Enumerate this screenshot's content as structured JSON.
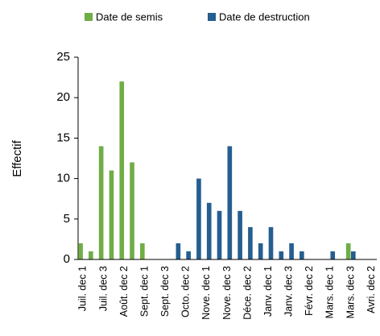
{
  "chart_data": {
    "type": "bar",
    "y_label": "Effectif",
    "categories": [
      "Juil. dec 1",
      null,
      "Juil. dec 3",
      null,
      "Août. dec 2",
      null,
      "Sept. dec 1",
      null,
      "Sept. dec 3",
      null,
      "Octo. dec 2",
      null,
      "Nove. dec 1",
      null,
      "Nove. dec 3",
      null,
      "Déce. dec 2",
      null,
      "Janv. dec 1",
      null,
      "Janv. dec 3",
      null,
      "Févr. dec 2",
      null,
      "Mars. dec 1",
      null,
      "Mars. dec 3",
      null,
      "Avri. dec 2"
    ],
    "series": [
      {
        "name": "Date de semis",
        "color": "#70ad47",
        "values": [
          2,
          1,
          14,
          11,
          22,
          12,
          2,
          null,
          null,
          null,
          null,
          null,
          null,
          null,
          null,
          null,
          null,
          null,
          null,
          null,
          null,
          null,
          null,
          null,
          null,
          null,
          2,
          null,
          null
        ]
      },
      {
        "name": "Date de destruction",
        "color": "#255e91",
        "values": [
          null,
          null,
          null,
          null,
          null,
          null,
          null,
          null,
          null,
          2,
          1,
          10,
          7,
          6,
          14,
          6,
          4,
          2,
          4,
          1,
          2,
          1,
          null,
          null,
          1,
          null,
          1,
          null,
          null
        ]
      }
    ],
    "ylim": [
      0,
      25
    ],
    "yticks": [
      0,
      5,
      10,
      15,
      20,
      25
    ],
    "grid": false,
    "legend": "top"
  }
}
